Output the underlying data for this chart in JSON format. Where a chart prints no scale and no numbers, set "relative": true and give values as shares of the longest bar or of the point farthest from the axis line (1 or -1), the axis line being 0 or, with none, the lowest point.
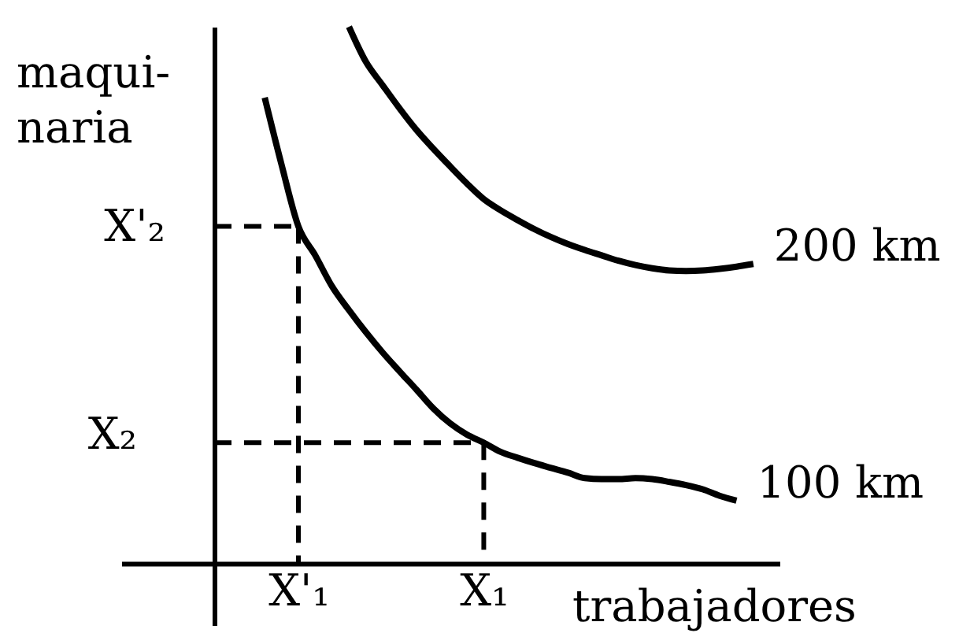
{
  "chart_data": {
    "type": "line",
    "relative": true,
    "xlabel": "trabajadores",
    "ylabel": "maqui-\nnaria",
    "tick_labels": "x",
    "line_style": "solid",
    "categories": [
      null,
      null,
      null,
      null,
      null,
      "X'₁",
      null,
      null,
      null,
      null,
      null,
      null,
      null,
      null,
      null,
      null,
      "X₁",
      null,
      null,
      null,
      null,
      null,
      null,
      null,
      null,
      null,
      null,
      null,
      null,
      null,
      null,
      null,
      null
    ],
    "series": [
      {
        "name": "200 km",
        "color": "#000000",
        "values": [
          null,
          null,
          null,
          null,
          null,
          null,
          null,
          null,
          1.0,
          0.935,
          0.891,
          0.848,
          0.808,
          0.773,
          0.74,
          0.708,
          0.679,
          0.658,
          0.64,
          0.623,
          0.608,
          0.595,
          0.584,
          0.574,
          0.564,
          0.556,
          0.55,
          0.546,
          0.545,
          0.546,
          0.549,
          0.553,
          0.558
        ]
      },
      {
        "name": "100 km",
        "color": "#000000",
        "values": [
          null,
          null,
          null,
          0.868,
          0.743,
          0.628,
          0.574,
          0.516,
          0.472,
          0.431,
          0.393,
          0.358,
          0.324,
          0.289,
          0.261,
          0.24,
          0.225,
          0.208,
          0.197,
          0.187,
          0.178,
          0.169,
          0.159,
          0.157,
          0.157,
          0.159,
          0.157,
          0.152,
          0.146,
          0.138,
          0.126,
          0.117,
          null
        ]
      },
      {
        "line_style": "dashed",
        "color": "#000000",
        "values": [
          0.628,
          0.628,
          0.628,
          0.628,
          0.628,
          0.628,
          null,
          null,
          null,
          null,
          null,
          null,
          null,
          null,
          null,
          null,
          null,
          null,
          null,
          null,
          null,
          null,
          null,
          null,
          null,
          null,
          null,
          null,
          null,
          null,
          null,
          null,
          null
        ]
      },
      {
        "line_style": "dashed",
        "color": "#000000",
        "values": [
          0.225,
          0.225,
          0.225,
          0.225,
          0.225,
          0.225,
          0.225,
          0.225,
          0.225,
          0.225,
          0.225,
          0.225,
          0.225,
          0.225,
          0.225,
          0.225,
          0.225,
          null,
          null,
          null,
          null,
          null,
          null,
          null,
          null,
          null,
          null,
          null,
          null,
          null,
          null,
          null,
          null
        ]
      },
      {
        "line_style": "dashed",
        "color": "#000000",
        "x": [
          "X'₁",
          "X'₁"
        ],
        "values": [
          0.628,
          0
        ]
      },
      {
        "line_style": "dashed",
        "color": "#000000",
        "x": [
          "X₁",
          "X₁"
        ],
        "values": [
          0.225,
          0
        ]
      }
    ],
    "annotations": [
      "X'₂",
      "X₂"
    ]
  }
}
